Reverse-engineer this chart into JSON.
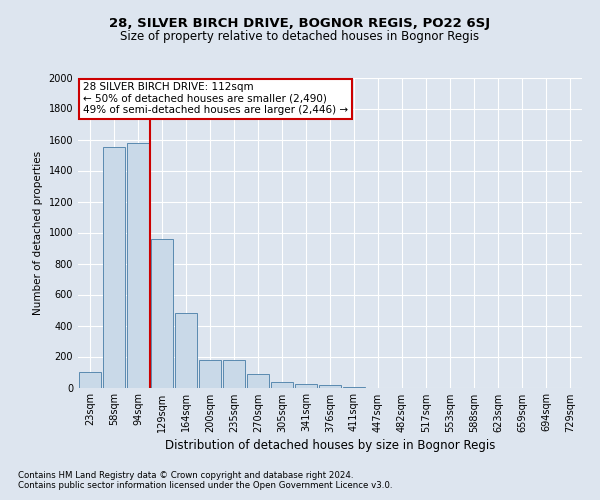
{
  "title1": "28, SILVER BIRCH DRIVE, BOGNOR REGIS, PO22 6SJ",
  "title2": "Size of property relative to detached houses in Bognor Regis",
  "xlabel": "Distribution of detached houses by size in Bognor Regis",
  "ylabel": "Number of detached properties",
  "footnote1": "Contains HM Land Registry data © Crown copyright and database right 2024.",
  "footnote2": "Contains public sector information licensed under the Open Government Licence v3.0.",
  "bar_labels": [
    "23sqm",
    "58sqm",
    "94sqm",
    "129sqm",
    "164sqm",
    "200sqm",
    "235sqm",
    "270sqm",
    "305sqm",
    "341sqm",
    "376sqm",
    "411sqm",
    "447sqm",
    "482sqm",
    "517sqm",
    "553sqm",
    "588sqm",
    "623sqm",
    "659sqm",
    "694sqm",
    "729sqm"
  ],
  "bar_values": [
    100,
    1550,
    1580,
    960,
    480,
    180,
    180,
    90,
    35,
    25,
    15,
    5,
    0,
    0,
    0,
    0,
    0,
    0,
    0,
    0,
    0
  ],
  "bar_color": "#c9d9e8",
  "bar_edge_color": "#5a8ab0",
  "vline_x": 2.5,
  "vline_color": "#cc0000",
  "ylim": [
    0,
    2000
  ],
  "yticks": [
    0,
    200,
    400,
    600,
    800,
    1000,
    1200,
    1400,
    1600,
    1800,
    2000
  ],
  "annotation_text": "28 SILVER BIRCH DRIVE: 112sqm\n← 50% of detached houses are smaller (2,490)\n49% of semi-detached houses are larger (2,446) →",
  "annotation_box_color": "#ffffff",
  "annotation_box_edge": "#cc0000",
  "bg_color": "#dde5ef",
  "title1_fontsize": 9.5,
  "title2_fontsize": 8.5,
  "xlabel_fontsize": 8.5,
  "ylabel_fontsize": 7.5,
  "tick_fontsize": 7,
  "annot_fontsize": 7.5,
  "footnote_fontsize": 6.2
}
